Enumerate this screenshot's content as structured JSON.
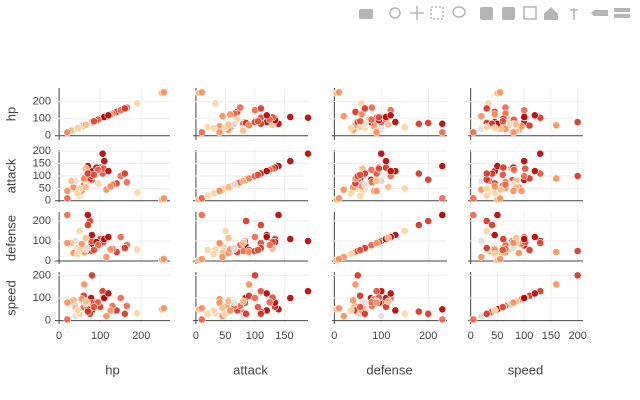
{
  "chart_data": {
    "type": "splom",
    "dimensions": [
      {
        "label": "hp",
        "xlim": [
          -10,
          270
        ],
        "xticks": [
          0,
          100,
          200
        ],
        "ylim": [
          -25,
          280
        ],
        "yticks": [
          0,
          100,
          200
        ],
        "values": [
          45,
          60,
          80,
          39,
          78,
          44,
          79,
          40,
          35,
          60,
          70,
          95,
          115,
          140,
          40,
          80,
          250,
          255,
          20,
          75,
          70,
          190,
          165,
          61,
          80,
          106,
          106,
          65,
          130,
          100,
          91,
          50,
          55,
          108,
          150,
          110,
          30,
          70,
          50,
          95,
          125,
          68,
          160,
          45,
          120,
          65,
          20,
          85
        ]
      },
      {
        "label": "attack",
        "xlim": [
          -5,
          190
        ],
        "xticks": [
          0,
          50,
          100,
          150
        ],
        "ylim": [
          -5,
          205
        ],
        "yticks": [
          0,
          50,
          100,
          150,
          200
        ],
        "values": [
          49,
          62,
          82,
          52,
          84,
          48,
          83,
          45,
          55,
          90,
          80,
          70,
          45,
          70,
          80,
          120,
          5,
          10,
          10,
          85,
          140,
          33,
          75,
          90,
          100,
          190,
          110,
          130,
          65,
          134,
          134,
          20,
          40,
          130,
          100,
          160,
          80,
          110,
          50,
          125,
          58,
          65,
          110,
          30,
          120,
          55,
          40,
          105
        ]
      },
      {
        "label": "defense",
        "xlim": [
          -5,
          240
        ],
        "xticks": [
          0,
          100,
          200
        ],
        "ylim": [
          -15,
          245
        ],
        "yticks": [
          0,
          100,
          200
        ],
        "values": [
          49,
          63,
          83,
          43,
          78,
          65,
          100,
          40,
          40,
          55,
          50,
          73,
          20,
          45,
          100,
          130,
          5,
          10,
          230,
          200,
          230,
          58,
          80,
          45,
          50,
          100,
          90,
          60,
          60,
          110,
          95,
          55,
          85,
          95,
          120,
          110,
          90,
          180,
          150,
          79,
          58,
          65,
          65,
          35,
          120,
          115,
          90,
          55
        ]
      },
      {
        "label": "speed",
        "xlim": [
          -5,
          210
        ],
        "xticks": [
          0,
          50,
          100,
          150,
          200
        ],
        "ylim": [
          -15,
          215
        ],
        "yticks": [
          0,
          100,
          200
        ],
        "values": [
          45,
          60,
          80,
          65,
          100,
          43,
          78,
          56,
          90,
          110,
          35,
          70,
          20,
          45,
          20,
          45,
          50,
          55,
          5,
          30,
          50,
          33,
          65,
          160,
          200,
          130,
          130,
          75,
          65,
          61,
          80,
          30,
          95,
          102,
          100,
          100,
          85,
          40,
          30,
          81,
          45,
          80,
          30,
          45,
          120,
          85,
          80,
          60
        ]
      }
    ],
    "colors": [
      "#fdbb84",
      "#ef6548",
      "#d7301f",
      "#fc8d59",
      "#b30000",
      "#fdd49e",
      "#e34a33",
      "#fdbb84",
      "#fc8d59",
      "#d7301f",
      "#ef6548",
      "#fdd49e",
      "#fc8d59",
      "#d7301f",
      "#e0e0e0",
      "#b30000",
      "#fdbb84",
      "#fc8d59",
      "#ef6548",
      "#d7301f",
      "#b30000",
      "#fdd49e",
      "#ef6548",
      "#fc8d59",
      "#d7301f",
      "#b30000",
      "#e34a33",
      "#fdbb84",
      "#ef6548",
      "#d7301f",
      "#b30000",
      "#fdd49e",
      "#fc8d59",
      "#e34a33",
      "#ef6548",
      "#b30000",
      "#fdbb84",
      "#d7301f",
      "#fdd49e",
      "#ef6548",
      "#fc8d59",
      "#e0e0e0",
      "#d7301f",
      "#fdd49e",
      "#b30000",
      "#fdbb84",
      "#fc8d59",
      "#e34a33"
    ]
  }
}
